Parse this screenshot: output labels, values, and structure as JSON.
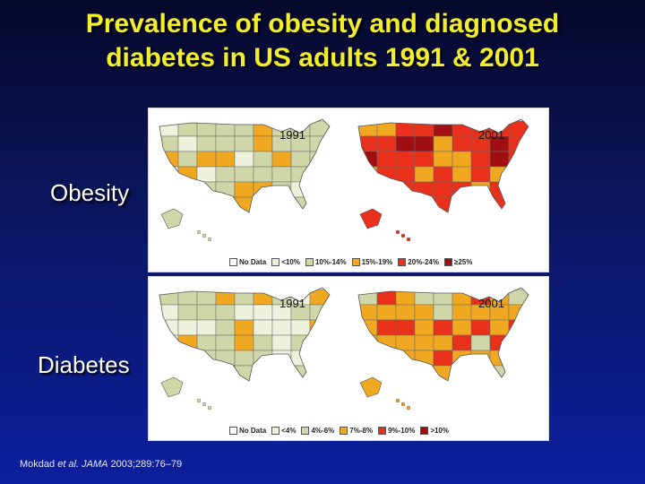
{
  "slide": {
    "title_line1": "Prevalence of obesity and diagnosed",
    "title_line2": "diabetes in US adults 1991 & 2001",
    "citation_author": "Mokdad",
    "citation_etal": "et al.",
    "citation_journal": "JAMA",
    "citation_ref": "2003;289:76–79"
  },
  "rows": [
    {
      "label": "Obesity",
      "maps": [
        {
          "year": "1991",
          "palette": [
            "#ffffff",
            "#eef2dc",
            "#cfd7a8",
            "#f0a820",
            "#e8301a",
            "#a00e12"
          ],
          "dominant": 2
        },
        {
          "year": "2001",
          "palette": [
            "#ffffff",
            "#eef2dc",
            "#cfd7a8",
            "#f0a820",
            "#e8301a",
            "#a00e12"
          ],
          "dominant": 4
        }
      ],
      "legend": [
        {
          "label": "No Data",
          "color": "#ffffff"
        },
        {
          "label": "<10%",
          "color": "#eef2dc"
        },
        {
          "label": "10%-14%",
          "color": "#cfd7a8"
        },
        {
          "label": "15%-19%",
          "color": "#f0a820"
        },
        {
          "label": "20%-24%",
          "color": "#e8301a"
        },
        {
          "label": "≥25%",
          "color": "#a00e12"
        }
      ]
    },
    {
      "label": "Diabetes",
      "maps": [
        {
          "year": "1991",
          "palette": [
            "#ffffff",
            "#eef2dc",
            "#cfd7a8",
            "#f0a820",
            "#e8301a",
            "#a00e12"
          ],
          "dominant": 2
        },
        {
          "year": "2001",
          "palette": [
            "#ffffff",
            "#eef2dc",
            "#cfd7a8",
            "#f0a820",
            "#e8301a",
            "#a00e12"
          ],
          "dominant": 3
        }
      ],
      "legend": [
        {
          "label": "No Data",
          "color": "#ffffff"
        },
        {
          "label": "<4%",
          "color": "#eef2dc"
        },
        {
          "label": "4%-6%",
          "color": "#cfd7a8"
        },
        {
          "label": "7%-8%",
          "color": "#f0a820"
        },
        {
          "label": "9%-10%",
          "color": "#e8301a"
        },
        {
          "label": ">10%",
          "color": "#a00e12"
        }
      ]
    }
  ]
}
